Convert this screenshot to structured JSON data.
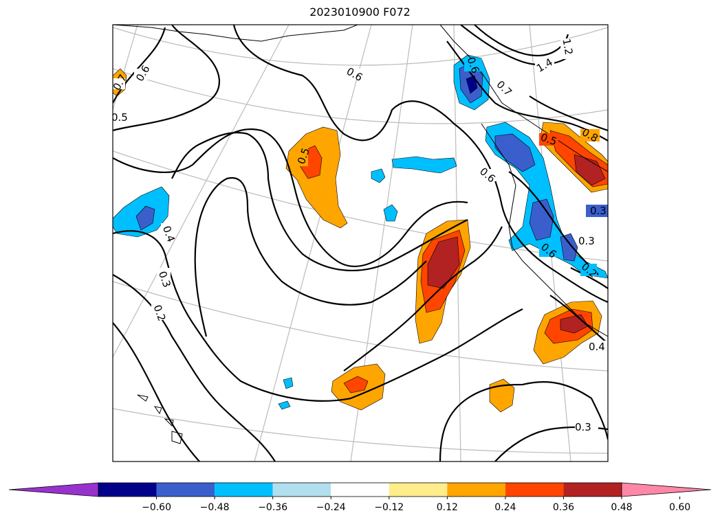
{
  "title": "2023010900 F072",
  "colorbar": {
    "colors": [
      "#9932CC",
      "#00008B",
      "#3A5FCD",
      "#00BFFF",
      "#B2DFEE",
      "#FFFFFF",
      "#FFEC8B",
      "#FFA500",
      "#FF4500",
      "#B22222",
      "#FF87A8"
    ],
    "ticks": [
      "−0.60",
      "−0.48",
      "−0.36",
      "−0.24",
      "−0.12",
      "0.12",
      "0.24",
      "0.36",
      "0.48",
      "0.60"
    ],
    "extend": "both"
  },
  "contour_labels": [
    {
      "text": "0.6"
    },
    {
      "text": "0.7"
    },
    {
      "text": "0.5"
    },
    {
      "text": "0.5"
    },
    {
      "text": "0.6"
    },
    {
      "text": "0.4"
    },
    {
      "text": "0.3"
    },
    {
      "text": "0.2"
    },
    {
      "text": "0.6"
    },
    {
      "text": "0.6"
    },
    {
      "text": "1.2"
    },
    {
      "text": "1.4"
    },
    {
      "text": "0.7"
    },
    {
      "text": "0.5"
    },
    {
      "text": "0.8"
    },
    {
      "text": "0.6"
    },
    {
      "text": "0.3"
    },
    {
      "text": "0.2"
    },
    {
      "text": "0.4"
    },
    {
      "text": "0.3"
    },
    {
      "text": "0.3"
    }
  ]
}
